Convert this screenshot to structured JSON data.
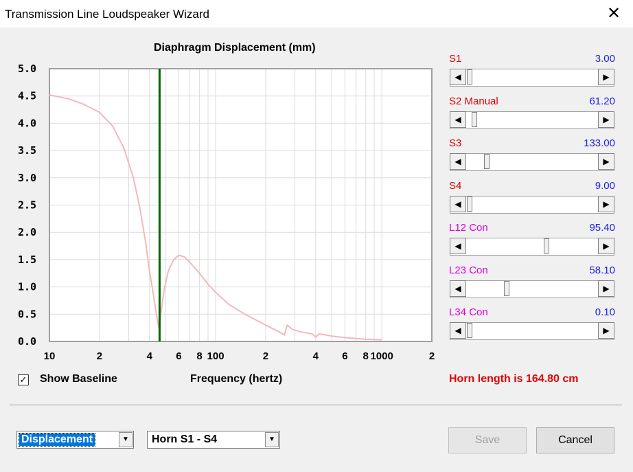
{
  "window": {
    "title": "Transmission Line Loudspeaker Wizard",
    "close_glyph": "✕"
  },
  "sliders": [
    {
      "label": "S1",
      "value": "3.00",
      "label_color": "#e00000",
      "position": 0.0
    },
    {
      "label": "S2  Manual",
      "value": "61.20",
      "label_color": "#e00000",
      "position": 0.04
    },
    {
      "label": "S3",
      "value": "133.00",
      "label_color": "#e00000",
      "position": 0.14
    },
    {
      "label": "S4",
      "value": "9.00",
      "label_color": "#e00000",
      "position": 0.0
    },
    {
      "label": "L12  Con",
      "value": "95.40",
      "label_color": "#e000e0",
      "position": 0.62
    },
    {
      "label": "L23  Con",
      "value": "58.10",
      "label_color": "#e000e0",
      "position": 0.3
    },
    {
      "label": "L34  Con",
      "value": "0.10",
      "label_color": "#e000e0",
      "position": 0.0
    }
  ],
  "show_baseline": {
    "label": "Show Baseline",
    "checked_glyph": "✓",
    "checked": true
  },
  "horn_length": "Horn length is 164.80 cm",
  "combos": {
    "view_select": "Displacement",
    "horn_select": "Horn S1 - S4",
    "arrow_glyph": "▼"
  },
  "buttons": {
    "save": "Save",
    "cancel": "Cancel"
  },
  "scroll_glyphs": {
    "left": "◀",
    "right": "▶"
  },
  "colors": {
    "curve": "#f4b8b8",
    "marker": "#006400",
    "horn_text": "#e00000",
    "value_text": "#2020e0"
  },
  "chart_data": {
    "type": "line",
    "title": "Diaphragm Displacement (mm)",
    "xlabel": "Frequency (hertz)",
    "ylabel": "",
    "x_scale": "log",
    "xlim": [
      10,
      2000
    ],
    "ylim": [
      0,
      5
    ],
    "y_ticks": [
      "0.0",
      "0.5",
      "1.0",
      "1.5",
      "2.0",
      "2.5",
      "3.0",
      "3.5",
      "4.0",
      "4.5",
      "5.0"
    ],
    "x_tick_labels": [
      {
        "x": 10,
        "label": "10"
      },
      {
        "x": 20,
        "label": "2"
      },
      {
        "x": 40,
        "label": "4"
      },
      {
        "x": 60,
        "label": "6"
      },
      {
        "x": 80,
        "label": "8"
      },
      {
        "x": 100,
        "label": "100"
      },
      {
        "x": 200,
        "label": "2"
      },
      {
        "x": 400,
        "label": "4"
      },
      {
        "x": 600,
        "label": "6"
      },
      {
        "x": 800,
        "label": "8"
      },
      {
        "x": 1000,
        "label": "1000"
      },
      {
        "x": 2000,
        "label": "2"
      }
    ],
    "marker_x": 46,
    "grid": true,
    "series": [
      {
        "x": [
          10,
          13,
          16,
          20,
          24,
          28,
          32,
          35,
          38,
          40,
          42,
          44,
          45.5,
          46,
          47,
          49,
          52,
          56,
          60,
          65,
          70,
          80,
          90,
          100,
          120,
          150,
          200,
          240,
          260,
          265,
          270,
          290,
          320,
          380,
          400,
          420,
          500,
          600,
          800,
          1000
        ],
        "y": [
          4.52,
          4.45,
          4.35,
          4.2,
          3.95,
          3.55,
          3.0,
          2.45,
          1.8,
          1.3,
          0.9,
          0.5,
          0.25,
          0.3,
          0.55,
          0.95,
          1.3,
          1.5,
          1.58,
          1.55,
          1.45,
          1.25,
          1.05,
          0.9,
          0.68,
          0.5,
          0.3,
          0.18,
          0.12,
          0.22,
          0.3,
          0.22,
          0.18,
          0.14,
          0.08,
          0.14,
          0.1,
          0.07,
          0.04,
          0.03
        ]
      }
    ]
  }
}
